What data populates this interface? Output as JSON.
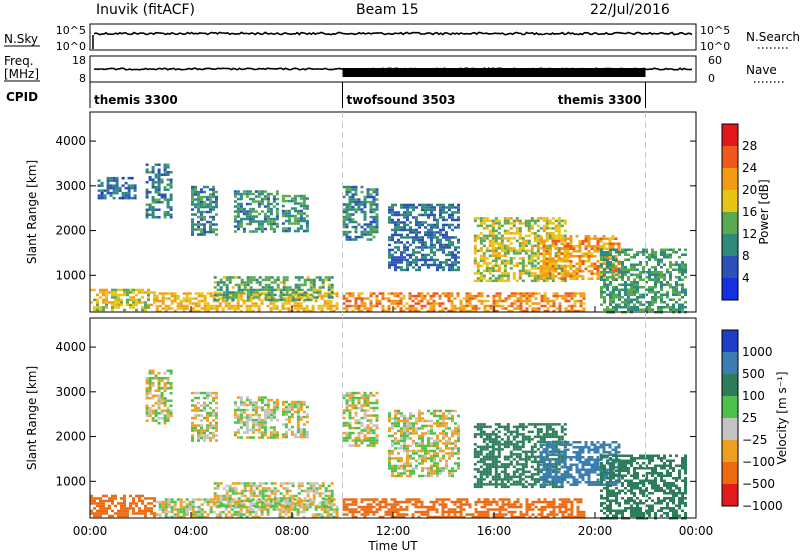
{
  "header": {
    "station": "Inuvik (fitACF)",
    "beam": "Beam 15",
    "date": "22/Jul/2016"
  },
  "top_panels": {
    "nsky_label": "N.Sky",
    "nsearch_label": "N.Search",
    "nsky_ticks": [
      "10^5",
      "10^0"
    ],
    "nsearch_ticks": [
      "10^5",
      "10^0"
    ],
    "freq_label": "Freq.",
    "freq_unit": "[MHz]",
    "freq_ticks": [
      "18",
      "8"
    ],
    "nave_label": "Nave",
    "nave_ticks": [
      "60",
      "0"
    ],
    "cpid_label": "CPID",
    "cpid_segments": [
      {
        "name": "themis 3300",
        "start": 0,
        "end": 10
      },
      {
        "name": "twofsound 3503",
        "start": 10,
        "end": 22
      },
      {
        "name": "themis 3300",
        "start": 22,
        "end": 24
      }
    ]
  },
  "time_axis": {
    "label": "Time UT",
    "ticks": [
      "00:00",
      "04:00",
      "08:00",
      "12:00",
      "16:00",
      "20:00",
      "00:00"
    ]
  },
  "chart_data": [
    {
      "type": "heatmap",
      "name": "Power",
      "xlabel": "Time UT",
      "ylabel": "Slant Range [km]",
      "xlim": [
        0,
        24
      ],
      "ylim": [
        180,
        4650
      ],
      "yticks": [
        1000,
        2000,
        3000,
        4000
      ],
      "colorbar": {
        "label": "Power [dB]",
        "ticks": [
          "28",
          "24",
          "20",
          "16",
          "12",
          "8",
          "4"
        ],
        "levels": [
          0,
          4,
          8,
          12,
          16,
          20,
          24,
          28,
          32
        ],
        "colors": [
          "#1530e0",
          "#2a52b8",
          "#2f8a7c",
          "#5aa850",
          "#e8c414",
          "#f39a17",
          "#ee5a1e",
          "#e2171d"
        ]
      },
      "regions": [
        {
          "t": [
            0,
            2.6
          ],
          "r": [
            200,
            700
          ],
          "v": 18
        },
        {
          "t": [
            2.6,
            9.8
          ],
          "r": [
            200,
            620
          ],
          "v": 20
        },
        {
          "t": [
            4.9,
            9.6
          ],
          "r": [
            450,
            980
          ],
          "v": 13
        },
        {
          "t": [
            0.3,
            1.8
          ],
          "r": [
            2700,
            3200
          ],
          "v": 7
        },
        {
          "t": [
            2.2,
            3.2
          ],
          "r": [
            2300,
            3500
          ],
          "v": 9
        },
        {
          "t": [
            4.0,
            5.0
          ],
          "r": [
            1900,
            3000
          ],
          "v": 10
        },
        {
          "t": [
            5.7,
            7.4
          ],
          "r": [
            2000,
            2900
          ],
          "v": 11
        },
        {
          "t": [
            7.6,
            8.6
          ],
          "r": [
            2000,
            2800
          ],
          "v": 11
        },
        {
          "t": [
            10.0,
            11.4
          ],
          "r": [
            1800,
            3000
          ],
          "v": 10
        },
        {
          "t": [
            11.8,
            14.6
          ],
          "r": [
            1100,
            2600
          ],
          "v": 8
        },
        {
          "t": [
            15.2,
            18.8
          ],
          "r": [
            900,
            2300
          ],
          "v": 17
        },
        {
          "t": [
            17.8,
            21.0
          ],
          "r": [
            900,
            1900
          ],
          "v": 22
        },
        {
          "t": [
            10.0,
            19.6
          ],
          "r": [
            200,
            620
          ],
          "v": 23
        },
        {
          "t": [
            20.2,
            23.6
          ],
          "r": [
            200,
            1600
          ],
          "v": 12
        }
      ]
    },
    {
      "type": "heatmap",
      "name": "Velocity",
      "xlabel": "Time UT",
      "ylabel": "Slant Range [km]",
      "xlim": [
        0,
        24
      ],
      "ylim": [
        180,
        4650
      ],
      "yticks": [
        1000,
        2000,
        3000,
        4000
      ],
      "colorbar": {
        "label": "Velocity [m s⁻¹]",
        "ticks": [
          "1000",
          "500",
          "100",
          "25",
          "−25",
          "−100",
          "−500",
          "−1000"
        ],
        "colors": [
          "#1f3ec8",
          "#3b7fb2",
          "#2e7d5a",
          "#4cc24c",
          "#c4c4c4",
          "#f0a020",
          "#ee6a10",
          "#e31a1c"
        ]
      },
      "regions": [
        {
          "t": [
            0,
            2.6
          ],
          "r": [
            200,
            700
          ],
          "v": -300
        },
        {
          "t": [
            2.6,
            9.8
          ],
          "r": [
            200,
            620
          ],
          "v": 0
        },
        {
          "t": [
            4.9,
            9.6
          ],
          "r": [
            450,
            980
          ],
          "v": 0
        },
        {
          "t": [
            2.2,
            3.2
          ],
          "r": [
            2300,
            3500
          ],
          "v": 0
        },
        {
          "t": [
            4.0,
            5.0
          ],
          "r": [
            1900,
            3000
          ],
          "v": 0
        },
        {
          "t": [
            5.7,
            7.4
          ],
          "r": [
            2000,
            2900
          ],
          "v": 0
        },
        {
          "t": [
            7.6,
            8.6
          ],
          "r": [
            2000,
            2800
          ],
          "v": 0
        },
        {
          "t": [
            10.0,
            11.4
          ],
          "r": [
            1800,
            3000
          ],
          "v": 0
        },
        {
          "t": [
            11.8,
            14.6
          ],
          "r": [
            1100,
            2600
          ],
          "v": 0
        },
        {
          "t": [
            15.2,
            18.8
          ],
          "r": [
            900,
            2300
          ],
          "v": 300
        },
        {
          "t": [
            17.8,
            21.0
          ],
          "r": [
            900,
            1900
          ],
          "v": 800
        },
        {
          "t": [
            10.0,
            19.6
          ],
          "r": [
            200,
            620
          ],
          "v": -300
        },
        {
          "t": [
            20.2,
            23.6
          ],
          "r": [
            200,
            1600
          ],
          "v": 300
        }
      ]
    }
  ]
}
